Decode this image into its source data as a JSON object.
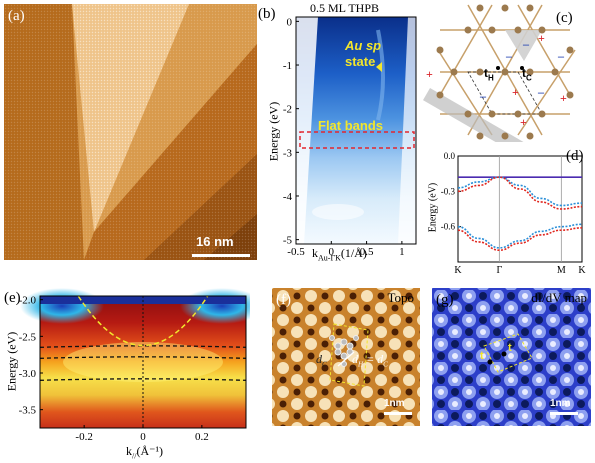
{
  "panels": {
    "a": {
      "label": "(a)",
      "scalebar": "16 nm"
    },
    "b": {
      "label": "(b)",
      "title": "0.5 ML THPB",
      "annotation_sp": "Au sp",
      "annotation_state": "state",
      "annotation_flat": "Flat bands",
      "ylabel": "Energy (eV)",
      "xlabel": "k",
      "xlabel_sub": "Au-ΓK",
      "xlabel_unit": "(1/Å)"
    },
    "c": {
      "label": "(c)",
      "site_h": "t",
      "site_h_sub": "H",
      "site_c": "t",
      "site_c_sub": "C"
    },
    "d": {
      "label": "(d)",
      "ylabel": "Energy (eV)"
    },
    "e": {
      "label": "(e)",
      "ylabel": "Energy (eV)",
      "xlabel": "k",
      "xlabel_sub": "//",
      "xlabel_unit": "(Å⁻¹)"
    },
    "f": {
      "label": "(f)",
      "mode": "Topo",
      "scalebar": "1nm",
      "d_c": "d",
      "d_h": "d",
      "eq": "= d"
    },
    "g": {
      "label": "(g)",
      "mode": "dI/dV map",
      "scalebar": "1nm",
      "site_h": "t",
      "site_c": "t"
    }
  },
  "chart_data": [
    {
      "type": "heatmap",
      "panel": "b",
      "title": "0.5 ML THPB",
      "xlabel": "kAu-ΓK(1/Å)",
      "ylabel": "Energy (eV)",
      "xlim": [
        -0.5,
        1.2
      ],
      "ylim": [
        -5.1,
        0.1
      ],
      "xticks": [
        -0.5,
        0,
        0.5,
        1
      ],
      "xtick_labels": [
        "-0.5",
        "0",
        "0.5",
        "1"
      ],
      "yticks": [
        0,
        -1,
        -2,
        -3,
        -4,
        -5
      ],
      "ytick_labels": [
        "0",
        "-1",
        "-2",
        "-3",
        "-4",
        "-5"
      ],
      "flat_band_window": [
        -2.5,
        -2.85
      ]
    },
    {
      "type": "line",
      "panel": "d",
      "ylabel": "Energy (eV)",
      "ylim": [
        -0.9,
        0.0
      ],
      "yticks": [
        0.0,
        -0.3,
        -0.6
      ],
      "ytick_labels": [
        "0.0",
        "-0.3",
        "-0.6"
      ],
      "xtick_labels": [
        "K",
        "Γ",
        "M",
        "K"
      ],
      "x": [
        0,
        0.5,
        1,
        1.5,
        2,
        2.5,
        3
      ],
      "series": [
        {
          "values": [
            -0.18,
            -0.18,
            -0.18,
            -0.18,
            -0.18,
            -0.18,
            -0.18
          ],
          "color": "#4b2bb0"
        },
        {
          "values": [
            -0.27,
            -0.22,
            -0.18,
            -0.25,
            -0.36,
            -0.42,
            -0.4
          ],
          "color": "#2a8fd8"
        },
        {
          "values": [
            -0.3,
            -0.25,
            -0.18,
            -0.28,
            -0.39,
            -0.45,
            -0.43
          ],
          "color": "#e0261e"
        },
        {
          "values": [
            -0.6,
            -0.7,
            -0.78,
            -0.72,
            -0.64,
            -0.6,
            -0.58
          ],
          "color": "#2a8fd8"
        },
        {
          "values": [
            -0.63,
            -0.73,
            -0.8,
            -0.74,
            -0.67,
            -0.63,
            -0.61
          ],
          "color": "#e0261e"
        }
      ]
    },
    {
      "type": "heatmap",
      "panel": "e",
      "ylabel": "Energy (eV)",
      "xlabel": "k// (Å⁻¹)",
      "xlim": [
        -0.35,
        0.35
      ],
      "ylim": [
        -3.75,
        -1.95
      ],
      "xticks": [
        -0.2,
        0,
        0.2
      ],
      "xtick_labels": [
        "-0.2",
        "0",
        "0.2"
      ],
      "yticks": [
        -2.0,
        -2.5,
        -3.0,
        -3.5
      ],
      "ytick_labels": [
        "-2.0",
        "-2.5",
        "-3.0",
        "-3.5"
      ],
      "flat_bands": [
        -2.65,
        -2.8,
        -3.1
      ]
    }
  ]
}
